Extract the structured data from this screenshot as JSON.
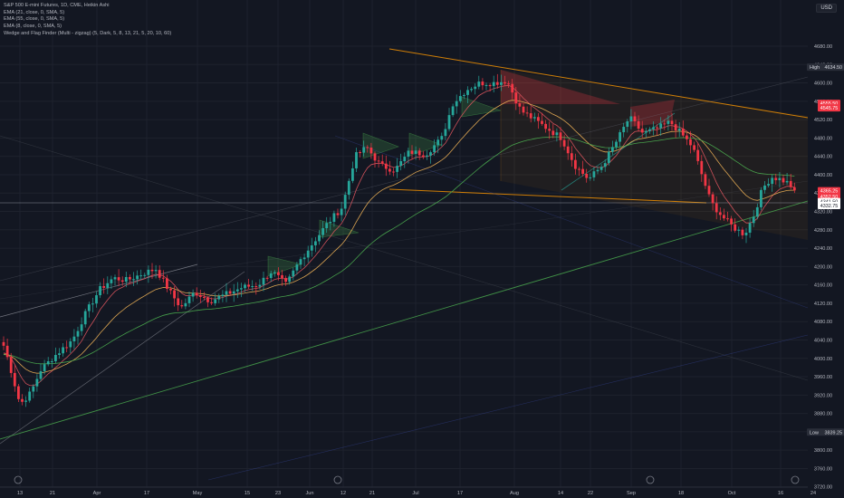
{
  "legend": {
    "title": "S&P 500 E-mini Futures, 1D, CME, Heikin Ashi",
    "indicators": [
      "EMA (21, close, 0, SMA, 5)",
      "EMA (55, close, 0, SMA, 5)",
      "EMA (8, close, 0, SMA, 5)",
      "Wedge and Flag Finder (Multi - zigzag) (5, Dark, 5, 8, 13, 21, 5, 20, 10, 60)"
    ]
  },
  "price_axis": {
    "currency": "USD",
    "ticks": [
      "4680.00",
      "4640.00",
      "4600.00",
      "4560.00",
      "4520.00",
      "4480.00",
      "4440.00",
      "4400.00",
      "4360.00",
      "4320.00",
      "4280.00",
      "4240.00",
      "4200.00",
      "4160.00",
      "4120.00",
      "4080.00",
      "4040.00",
      "4000.00",
      "3960.00",
      "3920.00",
      "3880.00",
      "3840.00",
      "3800.00",
      "3760.00",
      "3720.00"
    ],
    "high_label": "High",
    "high_value": "4634.50",
    "low_label": "Low",
    "low_value": "3839.25",
    "price_tags": [
      {
        "value": "4365.25",
        "color": "#f23645"
      },
      {
        "value": "4352.50",
        "color": "#f23645"
      },
      {
        "value": "4341.50",
        "color": "#ffffff"
      },
      {
        "value": "4332.75",
        "color": "#ffffff"
      },
      {
        "value": "4555.50",
        "color": "#f23645"
      },
      {
        "value": "4545.75",
        "color": "#f23645"
      }
    ]
  },
  "time_axis": {
    "labels": [
      "13",
      "21",
      "Apr",
      "17",
      "May",
      "15",
      "23",
      "Jun",
      "12",
      "21",
      "Jul",
      "17",
      "Aug",
      "14",
      "22",
      "Sep",
      "18",
      "Oct",
      "16",
      "24"
    ]
  },
  "colors": {
    "background": "#131722",
    "up": "#26a69a",
    "down": "#f23645",
    "ema8": "#e1575f",
    "ema21": "#f0b357",
    "ema55": "#4caf50",
    "wedge": "#ff9800"
  },
  "chart_data": {
    "type": "candlestick",
    "symbol": "S&P 500 E-mini Futures",
    "timeframe": "1D",
    "exchange": "CME",
    "candle_style": "Heikin Ashi",
    "y_range": [
      3700,
      4700
    ],
    "high": 4634.5,
    "low": 3839.25,
    "last_price": 4341.5,
    "x_ticks": [
      "13",
      "21",
      "Apr",
      "17",
      "May",
      "15",
      "23",
      "Jun",
      "12",
      "21",
      "Jul",
      "17",
      "Aug",
      "14",
      "22",
      "Sep",
      "18",
      "Oct",
      "16",
      "24"
    ],
    "series": [
      {
        "name": "EMA (21, close, 0, SMA, 5)",
        "color": "#f0b357"
      },
      {
        "name": "EMA (55, close, 0, SMA, 5)",
        "color": "#4caf50"
      },
      {
        "name": "EMA (8, close, 0, SMA, 5)",
        "color": "#e1575f"
      }
    ]
  }
}
